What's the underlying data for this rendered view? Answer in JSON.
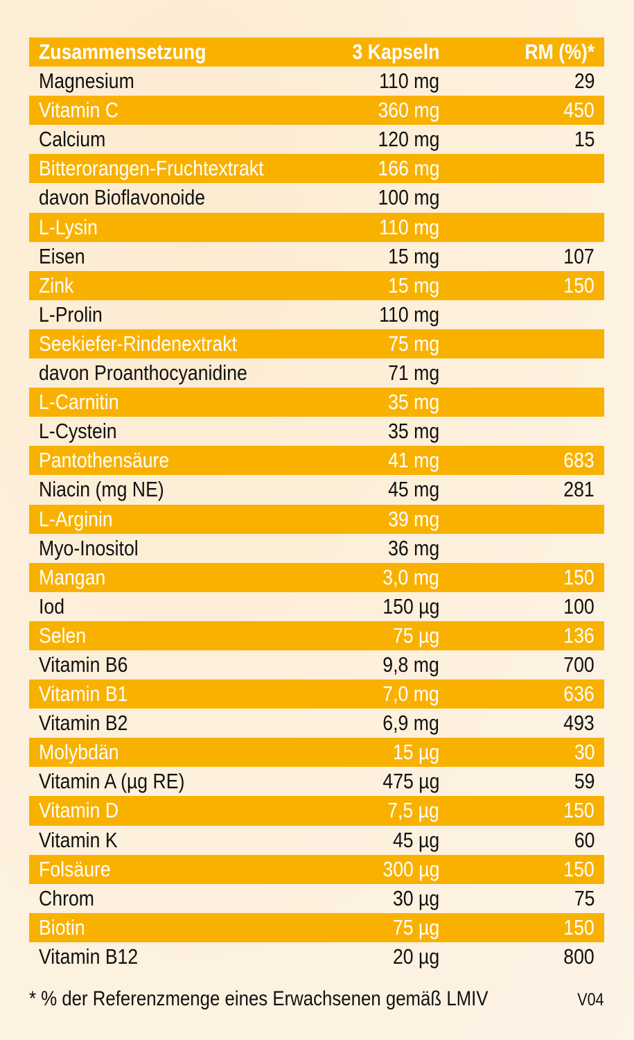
{
  "table": {
    "header": {
      "name": "Zusammensetzung",
      "amount": "3 Kapseln",
      "rm": "RM (%)*"
    },
    "rows": [
      {
        "name": "Magnesium",
        "amount": "110 mg",
        "rm": "29"
      },
      {
        "name": "Vitamin C",
        "amount": "360 mg",
        "rm": "450"
      },
      {
        "name": "Calcium",
        "amount": "120 mg",
        "rm": "15"
      },
      {
        "name": "Bitterorangen-Fruchtextrakt",
        "amount": "166 mg",
        "rm": ""
      },
      {
        "name": "davon Bioflavonoide",
        "amount": "100 mg",
        "rm": ""
      },
      {
        "name": "L-Lysin",
        "amount": "110 mg",
        "rm": ""
      },
      {
        "name": "Eisen",
        "amount": "15 mg",
        "rm": "107"
      },
      {
        "name": "Zink",
        "amount": "15 mg",
        "rm": "150"
      },
      {
        "name": "L-Prolin",
        "amount": "110 mg",
        "rm": ""
      },
      {
        "name": "Seekiefer-Rindenextrakt",
        "amount": "75 mg",
        "rm": ""
      },
      {
        "name": "davon Proanthocyanidine",
        "amount": "71 mg",
        "rm": ""
      },
      {
        "name": "L-Carnitin",
        "amount": "35 mg",
        "rm": ""
      },
      {
        "name": "L-Cystein",
        "amount": "35 mg",
        "rm": ""
      },
      {
        "name": "Pantothensäure",
        "amount": "41 mg",
        "rm": "683"
      },
      {
        "name": "Niacin (mg NE)",
        "amount": "45 mg",
        "rm": "281"
      },
      {
        "name": "L-Arginin",
        "amount": "39 mg",
        "rm": ""
      },
      {
        "name": "Myo-Inositol",
        "amount": "36 mg",
        "rm": ""
      },
      {
        "name": "Mangan",
        "amount": "3,0 mg",
        "rm": "150"
      },
      {
        "name": "Iod",
        "amount": "150 µg",
        "rm": "100"
      },
      {
        "name": "Selen",
        "amount": "75 µg",
        "rm": "136"
      },
      {
        "name": "Vitamin B6",
        "amount": "9,8 mg",
        "rm": "700"
      },
      {
        "name": "Vitamin B1",
        "amount": "7,0 mg",
        "rm": "636"
      },
      {
        "name": "Vitamin B2",
        "amount": "6,9 mg",
        "rm": "493"
      },
      {
        "name": "Molybdän",
        "amount": "15 µg",
        "rm": "30"
      },
      {
        "name": "Vitamin A (µg RE)",
        "amount": "475 µg",
        "rm": "59"
      },
      {
        "name": "Vitamin D",
        "amount": "7,5 µg",
        "rm": "150"
      },
      {
        "name": "Vitamin K",
        "amount": "45 µg",
        "rm": "60"
      },
      {
        "name": "Folsäure",
        "amount": "300 µg",
        "rm": "150"
      },
      {
        "name": "Chrom",
        "amount": "30 µg",
        "rm": "75"
      },
      {
        "name": "Biotin",
        "amount": "75 µg",
        "rm": "150"
      },
      {
        "name": "Vitamin B12",
        "amount": "20 µg",
        "rm": "800"
      }
    ]
  },
  "footnote": "* % der Referenzmenge eines Erwachsenen gemäß LMIV",
  "version": "V04",
  "colors": {
    "band": "#f9b100",
    "header_text": "#1b3fa0",
    "body_text": "#111111",
    "band_text": "#ffffff"
  }
}
